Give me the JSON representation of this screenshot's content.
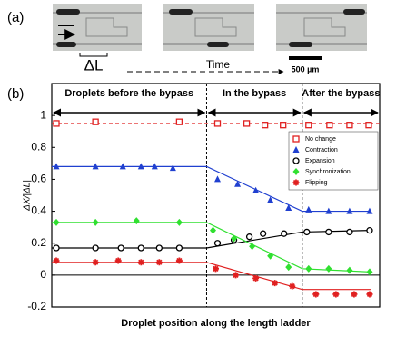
{
  "panel_a": {
    "label": "(a)",
    "delta_label": "ΔL",
    "time_label": "Time",
    "scale_label": "500 µm"
  },
  "chart_data": {
    "type": "scatter",
    "panel_label": "(b)",
    "x_label": "Droplet position along the length ladder",
    "y_label": "ΔX/|ΔL|",
    "xlim": [
      0,
      36
    ],
    "ylim": [
      -0.2,
      1.2
    ],
    "yticks": [
      -0.2,
      0,
      0.2,
      0.4,
      0.6,
      0.8,
      1
    ],
    "regions": [
      {
        "label": "Droplets before the bypass",
        "from": 0,
        "to": 17
      },
      {
        "label": "In the bypass",
        "from": 17,
        "to": 27.5
      },
      {
        "label": "After the bypass",
        "from": 27.5,
        "to": 36
      }
    ],
    "legend": "upper right",
    "series": [
      {
        "name": "No change",
        "color": "#e02020",
        "marker": "square",
        "x": [
          0.5,
          4.8,
          14,
          18.2,
          21.4,
          23.4,
          25.4,
          28.2,
          30.5,
          32.7,
          34.8
        ],
        "values": [
          0.95,
          0.96,
          0.96,
          0.95,
          0.95,
          0.94,
          0.94,
          0.94,
          0.94,
          0.94,
          0.94
        ],
        "fit": {
          "x": [
            0,
            36
          ],
          "values": [
            0.95,
            0.95
          ],
          "dashed": true
        }
      },
      {
        "name": "Contraction",
        "color": "#2040d0",
        "marker": "triangle",
        "x": [
          0.5,
          4.8,
          7.8,
          9.8,
          11.3,
          13.3,
          18.2,
          20.4,
          22.4,
          24,
          26,
          28.2,
          30.4,
          32.7,
          34.9
        ],
        "values": [
          0.68,
          0.68,
          0.68,
          0.68,
          0.68,
          0.67,
          0.6,
          0.57,
          0.53,
          0.47,
          0.42,
          0.41,
          0.4,
          0.4,
          0.4
        ],
        "fit": {
          "x": [
            0,
            17,
            27.5,
            35
          ],
          "values": [
            0.68,
            0.68,
            0.4,
            0.4
          ]
        }
      },
      {
        "name": "Expansion",
        "color": "#000000",
        "marker": "circle",
        "x": [
          0.5,
          4.8,
          7.6,
          9.8,
          11.8,
          14,
          18.2,
          20,
          21.7,
          23.2,
          25.5,
          28,
          30.4,
          32.7,
          34.9
        ],
        "values": [
          0.17,
          0.17,
          0.17,
          0.17,
          0.17,
          0.17,
          0.2,
          0.22,
          0.24,
          0.26,
          0.26,
          0.27,
          0.27,
          0.27,
          0.28
        ],
        "fit": {
          "x": [
            0,
            17,
            27.5,
            35
          ],
          "values": [
            0.17,
            0.17,
            0.27,
            0.28
          ]
        }
      },
      {
        "name": "Synchronization",
        "color": "#30e030",
        "marker": "diamond",
        "x": [
          0.5,
          4.8,
          9.3,
          14,
          17.7,
          20,
          22,
          24,
          26,
          28.2,
          30.4,
          32.7,
          34.9
        ],
        "values": [
          0.33,
          0.33,
          0.34,
          0.33,
          0.28,
          0.23,
          0.18,
          0.12,
          0.05,
          0.04,
          0.04,
          0.03,
          0.02
        ],
        "fit": {
          "x": [
            0,
            17,
            27.5,
            35
          ],
          "values": [
            0.33,
            0.33,
            0.04,
            0.02
          ]
        }
      },
      {
        "name": "Flipping",
        "color": "#e02020",
        "marker": "asterisk",
        "x": [
          0.5,
          4.8,
          7.3,
          9.8,
          11.8,
          14,
          18,
          20.2,
          22.4,
          24.5,
          26.4,
          29,
          31.2,
          33.2,
          34.9
        ],
        "values": [
          0.09,
          0.08,
          0.09,
          0.08,
          0.08,
          0.09,
          0.04,
          0,
          -0.02,
          -0.05,
          -0.07,
          -0.12,
          -0.12,
          -0.12,
          -0.12
        ],
        "fit": {
          "x": [
            0,
            17,
            27.5,
            35
          ],
          "values": [
            0.08,
            0.08,
            -0.09,
            -0.09
          ]
        }
      }
    ]
  }
}
